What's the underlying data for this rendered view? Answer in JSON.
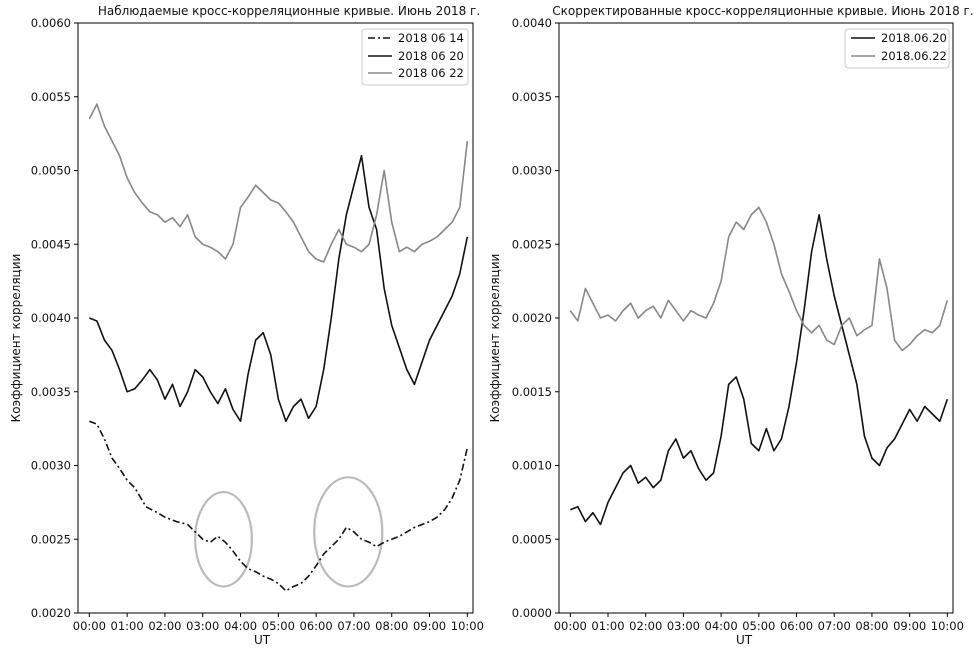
{
  "chart_data": [
    {
      "type": "line",
      "title": "Наблюдаемые кросс-корреляционные кривые. Июнь 2018 г.",
      "xlabel": "UT",
      "ylabel": "Коэффициент корреляции",
      "xlim": [
        -0.3,
        10.15
      ],
      "ylim": [
        0.002,
        0.006
      ],
      "x_tick_labels": [
        "00:00",
        "01:00",
        "02:00",
        "03:00",
        "04:00",
        "05:00",
        "06:00",
        "07:00",
        "08:00",
        "09:00",
        "10:00"
      ],
      "y_tick_labels": [
        "0.0020",
        "0.0025",
        "0.0030",
        "0.0035",
        "0.0040",
        "0.0045",
        "0.0050",
        "0.0055",
        "0.0060"
      ],
      "legend_position": "top-right",
      "grid": false,
      "series": [
        {
          "name": "2018 06 14",
          "color": "#111111",
          "style": "dashdot",
          "x": [
            0,
            0.2,
            0.4,
            0.6,
            0.8,
            1.0,
            1.2,
            1.5,
            1.8,
            2.0,
            2.3,
            2.6,
            2.8,
            3.0,
            3.2,
            3.4,
            3.6,
            3.8,
            4.0,
            4.2,
            4.4,
            4.6,
            4.8,
            5.0,
            5.2,
            5.4,
            5.6,
            5.8,
            6.0,
            6.2,
            6.4,
            6.6,
            6.8,
            7.0,
            7.2,
            7.4,
            7.6,
            7.8,
            8.0,
            8.2,
            8.4,
            8.6,
            8.8,
            9.0,
            9.2,
            9.4,
            9.6,
            9.8,
            10.0
          ],
          "y": [
            0.0033,
            0.00328,
            0.00318,
            0.00305,
            0.00298,
            0.0029,
            0.00285,
            0.00272,
            0.00268,
            0.00265,
            0.00262,
            0.0026,
            0.00255,
            0.0025,
            0.00248,
            0.00252,
            0.00248,
            0.00242,
            0.00235,
            0.0023,
            0.00228,
            0.00225,
            0.00223,
            0.0022,
            0.00215,
            0.00218,
            0.0022,
            0.00225,
            0.00232,
            0.0024,
            0.00245,
            0.0025,
            0.00258,
            0.00255,
            0.0025,
            0.00248,
            0.00245,
            0.00248,
            0.0025,
            0.00252,
            0.00255,
            0.00258,
            0.0026,
            0.00262,
            0.00265,
            0.0027,
            0.00278,
            0.0029,
            0.00312
          ]
        },
        {
          "name": "2018 06 20",
          "color": "#111111",
          "style": "solid",
          "x": [
            0,
            0.2,
            0.4,
            0.6,
            0.8,
            1.0,
            1.2,
            1.4,
            1.6,
            1.8,
            2.0,
            2.2,
            2.4,
            2.6,
            2.8,
            3.0,
            3.2,
            3.4,
            3.6,
            3.8,
            4.0,
            4.2,
            4.4,
            4.6,
            4.8,
            5.0,
            5.2,
            5.4,
            5.6,
            5.8,
            6.0,
            6.2,
            6.4,
            6.6,
            6.8,
            7.0,
            7.2,
            7.4,
            7.6,
            7.8,
            8.0,
            8.2,
            8.4,
            8.6,
            8.8,
            9.0,
            9.2,
            9.4,
            9.6,
            9.8,
            10.0
          ],
          "y": [
            0.004,
            0.00398,
            0.00385,
            0.00378,
            0.00365,
            0.0035,
            0.00352,
            0.00358,
            0.00365,
            0.00358,
            0.00345,
            0.00355,
            0.0034,
            0.0035,
            0.00365,
            0.0036,
            0.0035,
            0.00342,
            0.00352,
            0.00338,
            0.0033,
            0.00362,
            0.00385,
            0.0039,
            0.00375,
            0.00345,
            0.0033,
            0.0034,
            0.00345,
            0.00332,
            0.0034,
            0.00365,
            0.004,
            0.0044,
            0.0047,
            0.0049,
            0.0051,
            0.00475,
            0.0046,
            0.0042,
            0.00395,
            0.0038,
            0.00365,
            0.00355,
            0.0037,
            0.00385,
            0.00395,
            0.00405,
            0.00415,
            0.0043,
            0.00455
          ]
        },
        {
          "name": "2018 06 22",
          "color": "#888888",
          "style": "solid",
          "x": [
            0,
            0.2,
            0.4,
            0.6,
            0.8,
            1.0,
            1.2,
            1.4,
            1.6,
            1.8,
            2.0,
            2.2,
            2.4,
            2.6,
            2.8,
            3.0,
            3.2,
            3.4,
            3.6,
            3.8,
            4.0,
            4.2,
            4.4,
            4.6,
            4.8,
            5.0,
            5.2,
            5.4,
            5.6,
            5.8,
            6.0,
            6.2,
            6.4,
            6.6,
            6.8,
            7.0,
            7.2,
            7.4,
            7.6,
            7.8,
            8.0,
            8.2,
            8.4,
            8.6,
            8.8,
            9.0,
            9.2,
            9.4,
            9.6,
            9.8,
            10.0
          ],
          "y": [
            0.00535,
            0.00545,
            0.0053,
            0.0052,
            0.0051,
            0.00495,
            0.00485,
            0.00478,
            0.00472,
            0.0047,
            0.00465,
            0.00468,
            0.00462,
            0.0047,
            0.00455,
            0.0045,
            0.00448,
            0.00445,
            0.0044,
            0.0045,
            0.00475,
            0.00482,
            0.0049,
            0.00485,
            0.0048,
            0.00478,
            0.00472,
            0.00465,
            0.00455,
            0.00445,
            0.0044,
            0.00438,
            0.0045,
            0.0046,
            0.0045,
            0.00448,
            0.00445,
            0.0045,
            0.0047,
            0.005,
            0.00465,
            0.00445,
            0.00448,
            0.00445,
            0.0045,
            0.00452,
            0.00455,
            0.0046,
            0.00465,
            0.00475,
            0.0052
          ]
        }
      ],
      "highlight_ellipses": [
        {
          "x_center": 3.55,
          "x_halfwidth": 0.75,
          "y_center": 0.0025,
          "y_halfheight": 0.00032
        },
        {
          "x_center": 6.85,
          "x_halfwidth": 0.9,
          "y_center": 0.00255,
          "y_halfheight": 0.00037
        }
      ]
    },
    {
      "type": "line",
      "title": "Скорректированные кросс-корреляционные кривые. Июнь 2018 г.",
      "xlabel": "UT",
      "ylabel": "Коэффициент корреляции",
      "xlim": [
        -0.3,
        10.15
      ],
      "ylim": [
        0.0,
        0.004
      ],
      "x_tick_labels": [
        "00:00",
        "01:00",
        "02:00",
        "03:00",
        "04:00",
        "05:00",
        "06:00",
        "07:00",
        "08:00",
        "09:00",
        "10:00"
      ],
      "y_tick_labels": [
        "0.0000",
        "0.0005",
        "0.0010",
        "0.0015",
        "0.0020",
        "0.0025",
        "0.0030",
        "0.0035",
        "0.0040"
      ],
      "legend_position": "top-right",
      "grid": false,
      "series": [
        {
          "name": "2018.06.20",
          "color": "#111111",
          "style": "solid",
          "x": [
            0,
            0.2,
            0.4,
            0.6,
            0.8,
            1.0,
            1.2,
            1.4,
            1.6,
            1.8,
            2.0,
            2.2,
            2.4,
            2.6,
            2.8,
            3.0,
            3.2,
            3.4,
            3.6,
            3.8,
            4.0,
            4.2,
            4.4,
            4.6,
            4.8,
            5.0,
            5.2,
            5.4,
            5.6,
            5.8,
            6.0,
            6.2,
            6.4,
            6.6,
            6.8,
            7.0,
            7.2,
            7.4,
            7.6,
            7.8,
            8.0,
            8.2,
            8.4,
            8.6,
            8.8,
            9.0,
            9.2,
            9.4,
            9.6,
            9.8,
            10.0
          ],
          "y": [
            0.0007,
            0.00072,
            0.00062,
            0.00068,
            0.0006,
            0.00075,
            0.00085,
            0.00095,
            0.001,
            0.00088,
            0.00092,
            0.00085,
            0.0009,
            0.0011,
            0.00118,
            0.00105,
            0.0011,
            0.00098,
            0.0009,
            0.00095,
            0.0012,
            0.00155,
            0.0016,
            0.00145,
            0.00115,
            0.0011,
            0.00125,
            0.0011,
            0.00118,
            0.0014,
            0.0017,
            0.00205,
            0.00245,
            0.0027,
            0.0024,
            0.00215,
            0.00195,
            0.00175,
            0.00155,
            0.0012,
            0.00105,
            0.001,
            0.00112,
            0.00118,
            0.00128,
            0.00138,
            0.0013,
            0.0014,
            0.00135,
            0.0013,
            0.00145
          ]
        },
        {
          "name": "2018.06.22",
          "color": "#888888",
          "style": "solid",
          "x": [
            0,
            0.2,
            0.4,
            0.6,
            0.8,
            1.0,
            1.2,
            1.4,
            1.6,
            1.8,
            2.0,
            2.2,
            2.4,
            2.6,
            2.8,
            3.0,
            3.2,
            3.4,
            3.6,
            3.8,
            4.0,
            4.2,
            4.4,
            4.6,
            4.8,
            5.0,
            5.2,
            5.4,
            5.6,
            5.8,
            6.0,
            6.2,
            6.4,
            6.6,
            6.8,
            7.0,
            7.2,
            7.4,
            7.6,
            7.8,
            8.0,
            8.2,
            8.4,
            8.6,
            8.8,
            9.0,
            9.2,
            9.4,
            9.6,
            9.8,
            10.0
          ],
          "y": [
            0.00205,
            0.00198,
            0.0022,
            0.0021,
            0.002,
            0.00202,
            0.00198,
            0.00205,
            0.0021,
            0.002,
            0.00205,
            0.00208,
            0.002,
            0.00212,
            0.00205,
            0.00198,
            0.00205,
            0.00202,
            0.002,
            0.0021,
            0.00225,
            0.00255,
            0.00265,
            0.0026,
            0.0027,
            0.00275,
            0.00265,
            0.0025,
            0.0023,
            0.00218,
            0.00205,
            0.00195,
            0.0019,
            0.00195,
            0.00185,
            0.00182,
            0.00195,
            0.002,
            0.00188,
            0.00192,
            0.00195,
            0.0024,
            0.0022,
            0.00185,
            0.00178,
            0.00182,
            0.00188,
            0.00192,
            0.0019,
            0.00195,
            0.00212
          ]
        }
      ]
    }
  ]
}
